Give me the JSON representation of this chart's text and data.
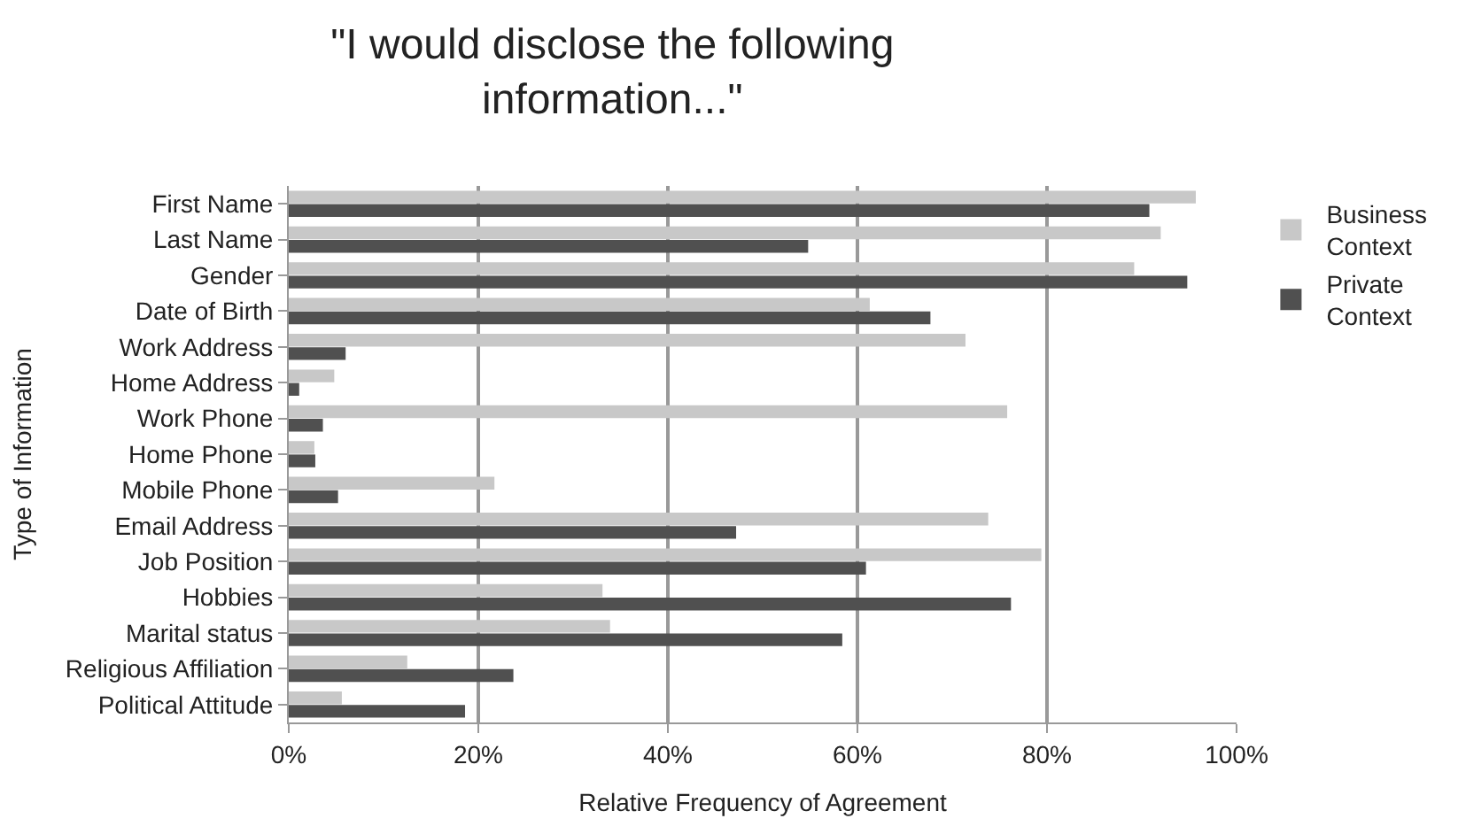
{
  "chart_data": {
    "type": "bar",
    "orientation": "horizontal",
    "title": "\"I would disclose the following information...\"",
    "xlabel": "Relative Frequency of Agreement",
    "ylabel": "Type of Information",
    "categories": [
      "First Name",
      "Last Name",
      "Gender",
      "Date of Birth",
      "Work Address",
      "Home Address",
      "Work Phone",
      "Home Phone",
      "Mobile Phone",
      "Email Address",
      "Job Position",
      "Hobbies",
      "Marital status",
      "Religious Affiliation",
      "Political Attitude"
    ],
    "series": [
      {
        "name": "Business Context",
        "color": "#c8c8c8",
        "values": [
          95.7,
          92,
          89.2,
          61.3,
          71.4,
          4.8,
          75.8,
          2.7,
          21.7,
          73.8,
          79.4,
          33.1,
          33.9,
          12.5,
          5.6
        ]
      },
      {
        "name": "Private Context",
        "color": "#505050",
        "values": [
          90.8,
          54.8,
          94.8,
          67.7,
          6.0,
          1.1,
          3.6,
          2.8,
          5.2,
          47.2,
          60.9,
          76.2,
          58.4,
          23.7,
          18.6
        ]
      }
    ],
    "xlim": [
      0,
      100
    ],
    "xticks": [
      {
        "value": 0,
        "label": "0%"
      },
      {
        "value": 20,
        "label": "20%"
      },
      {
        "value": 40,
        "label": "40%"
      },
      {
        "value": 60,
        "label": "60%"
      },
      {
        "value": 80,
        "label": "80%"
      },
      {
        "value": 100,
        "label": "100%"
      }
    ],
    "grid": "x",
    "legend": "top right"
  }
}
